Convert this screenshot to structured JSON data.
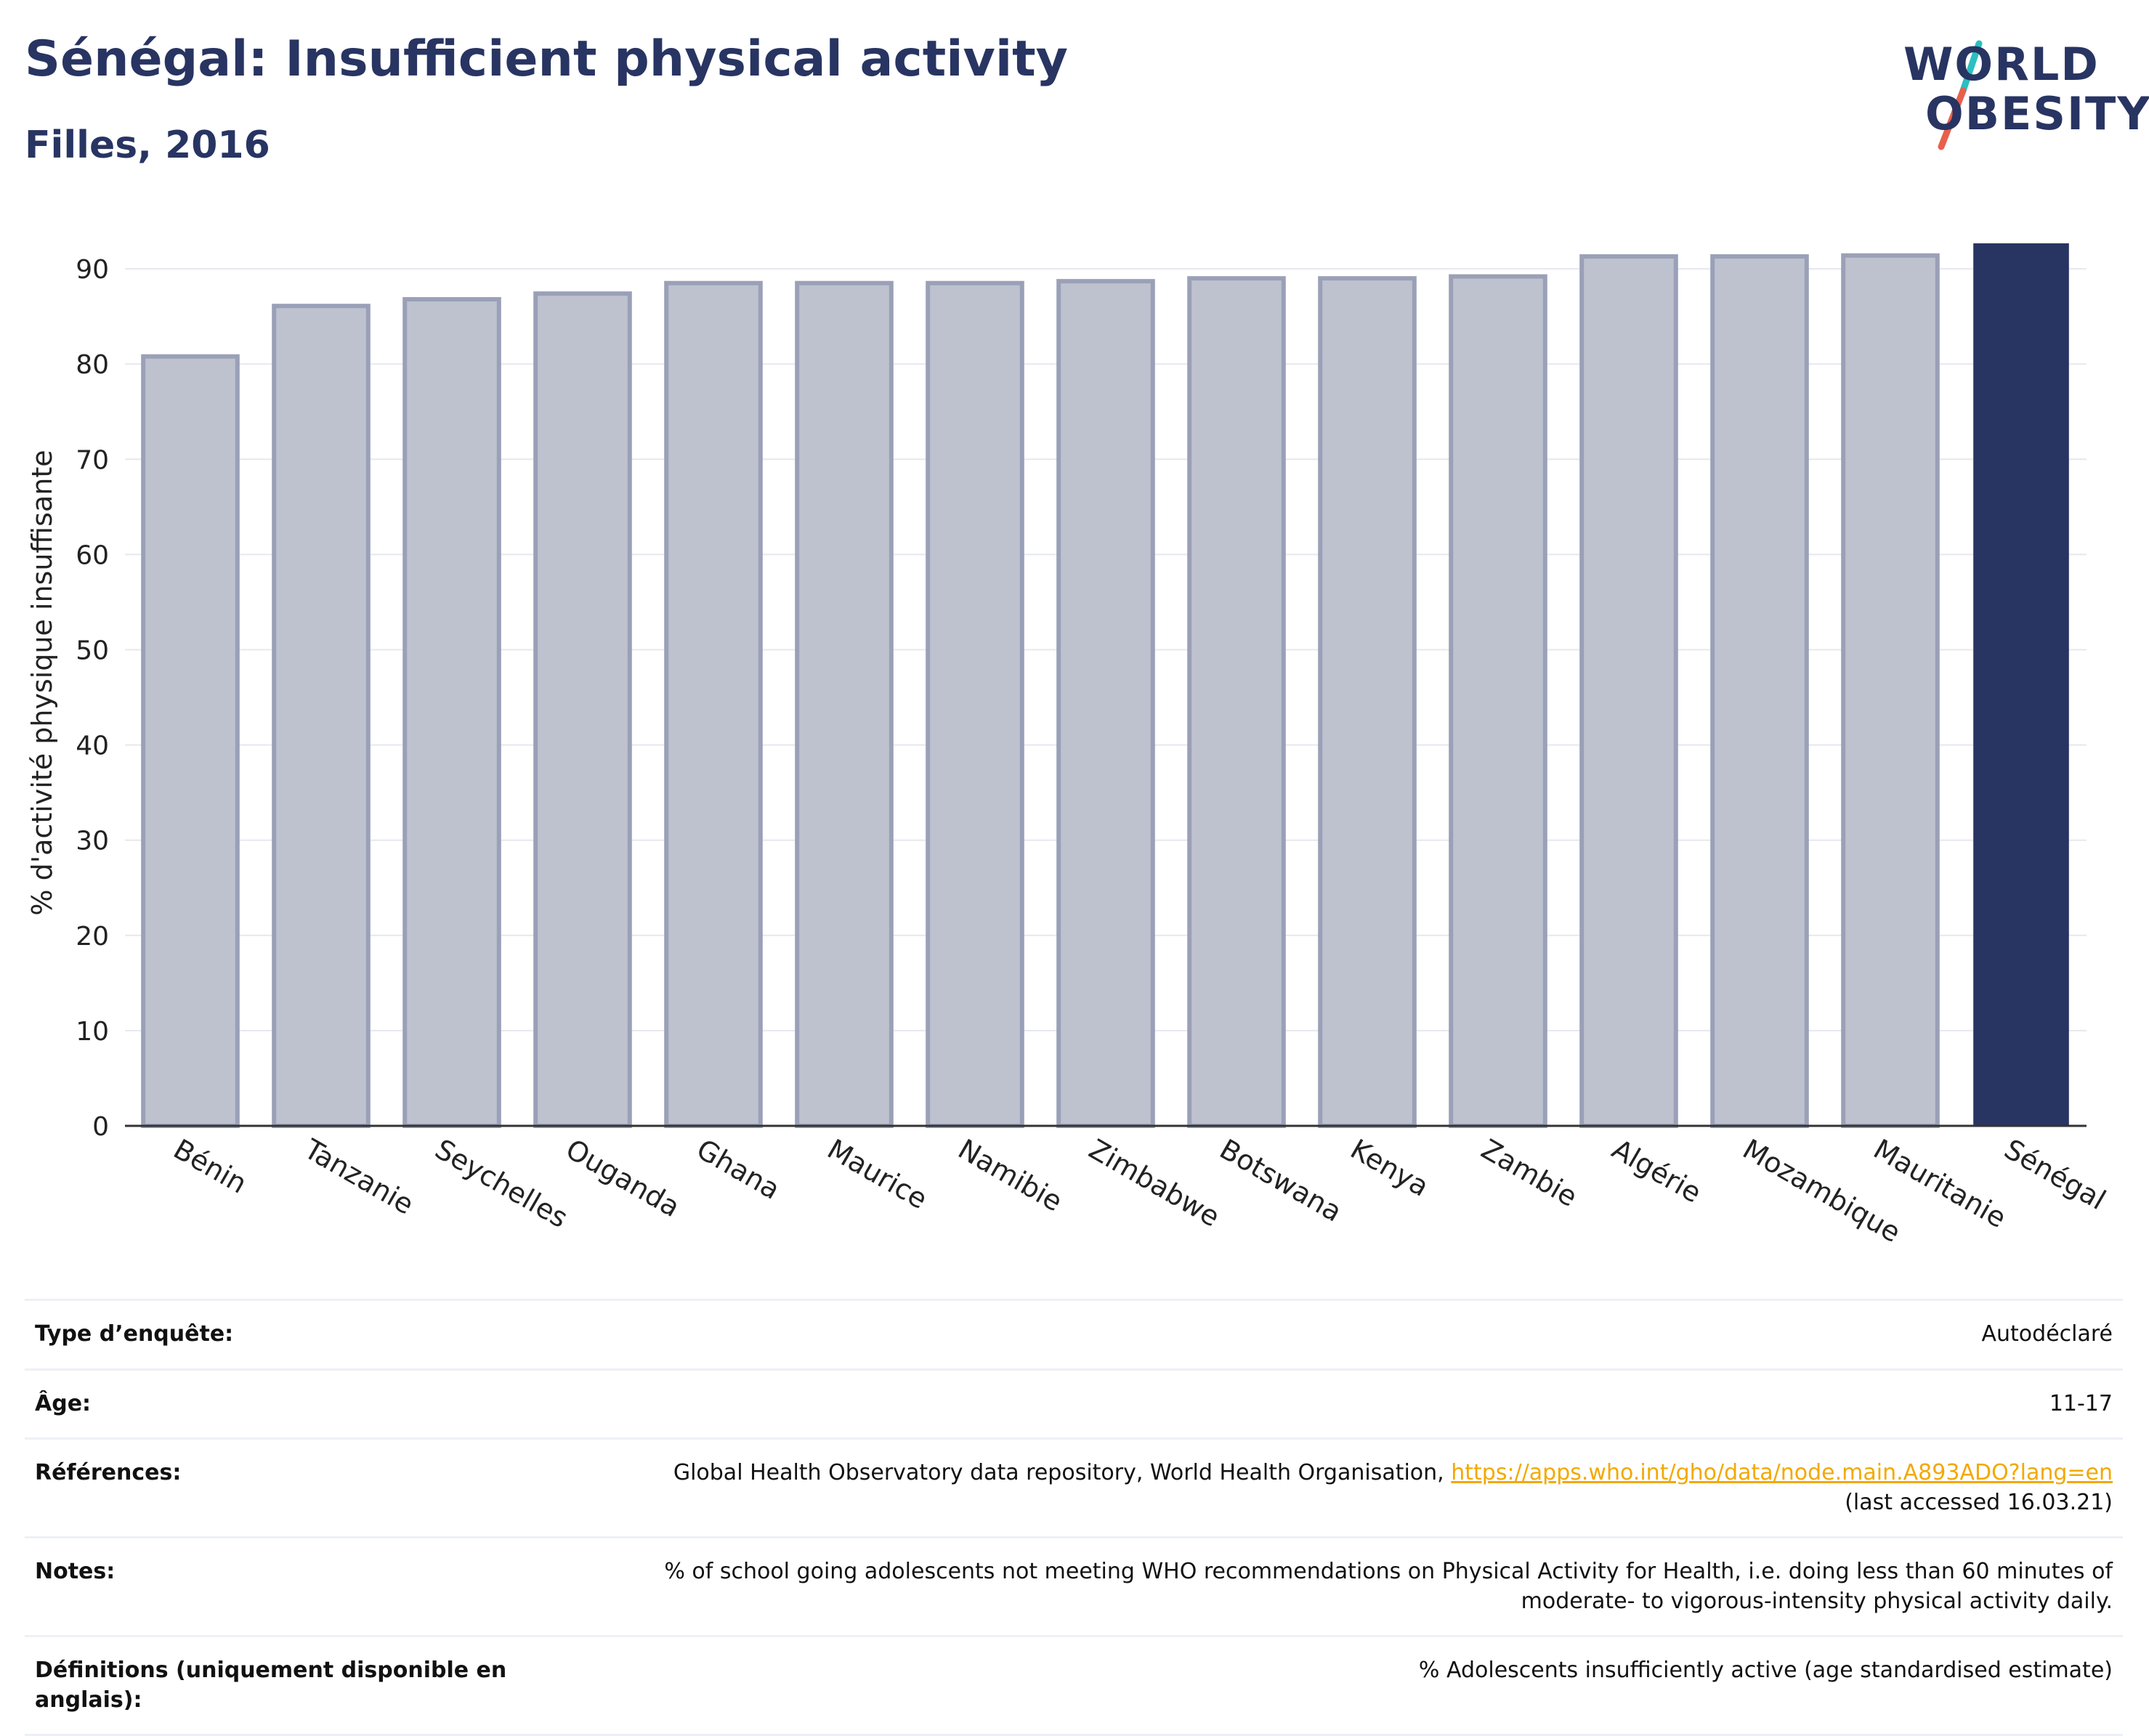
{
  "header": {
    "title": "Sénégal: Insufficient physical activity",
    "subtitle": "Filles, 2016"
  },
  "logo": {
    "line1": "WORLD",
    "line2": "OBESITY",
    "colors": {
      "text": "#283462",
      "slash_top": "#2bbfc0",
      "slash_bottom": "#e8604c"
    }
  },
  "chart_data": {
    "type": "bar",
    "title": "Sénégal: Insufficient physical activity",
    "subtitle": "Filles, 2016",
    "xlabel": "",
    "ylabel": "% d'activité physique insuffisante",
    "categories": [
      "Bénin",
      "Tanzanie",
      "Seychelles",
      "Ouganda",
      "Ghana",
      "Maurice",
      "Namibie",
      "Zimbabwe",
      "Botswana",
      "Kenya",
      "Zambie",
      "Algérie",
      "Mozambique",
      "Mauritanie",
      "Sénégal"
    ],
    "values": [
      80.8,
      86.1,
      86.8,
      87.4,
      88.5,
      88.5,
      88.5,
      88.7,
      89.0,
      89.0,
      89.2,
      91.3,
      91.3,
      91.4,
      92.6
    ],
    "highlight": "Sénégal",
    "ylim": [
      0,
      92.6
    ],
    "yticks": [
      0,
      10,
      20,
      30,
      40,
      50,
      60,
      70,
      80,
      90
    ],
    "grid": true,
    "colors": {
      "bar": "#bec2cf",
      "bar_border": "#9aa0b7",
      "highlight": "#283462",
      "grid": "#e6e8ef",
      "axis": "#333333"
    }
  },
  "meta": {
    "rows": [
      {
        "label": "Type d’enquête:",
        "value": "Autodéclaré"
      },
      {
        "label": "Âge:",
        "value": "11-17"
      },
      {
        "label": "Références:",
        "value": "Global Health Observatory data repository, World Health Organisation,",
        "link": "https://apps.who.int/gho/data/node.main.A893ADO?lang=en",
        "value2": "(last accessed 16.03.21)"
      },
      {
        "label": "Notes:",
        "value": "% of school going adolescents not meeting WHO recommendations on Physical Activity for Health, i.e. doing less than 60 minutes of",
        "value2": "moderate- to vigorous-intensity physical activity daily."
      },
      {
        "label": "Définitions (uniquement disponible en anglais):",
        "value": "% Adolescents insufficiently active (age standardised estimate)"
      }
    ]
  }
}
